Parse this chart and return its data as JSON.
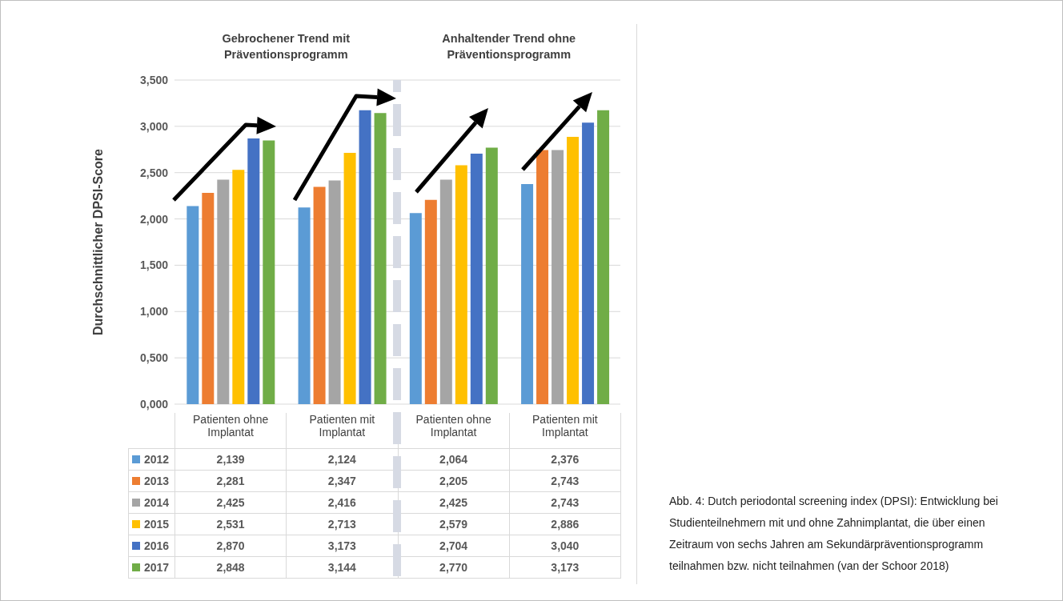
{
  "chart_data": {
    "type": "bar",
    "ylabel": "Durchschnittlicher DPSI-Score",
    "categories": [
      "Patienten ohne Implantat",
      "Patienten mit Implantat",
      "Patienten ohne Implantat",
      "Patienten mit Implantat"
    ],
    "series": [
      {
        "name": "2012",
        "color": "#5b9bd5",
        "values": [
          2.139,
          2.124,
          2.064,
          2.376
        ],
        "value_labels": [
          "2,139",
          "2,124",
          "2,064",
          "2,376"
        ]
      },
      {
        "name": "2013",
        "color": "#ed7d31",
        "values": [
          2.281,
          2.347,
          2.205,
          2.743
        ],
        "value_labels": [
          "2,281",
          "2,347",
          "2,205",
          "2,743"
        ]
      },
      {
        "name": "2014",
        "color": "#a5a5a5",
        "values": [
          2.425,
          2.416,
          2.425,
          2.743
        ],
        "value_labels": [
          "2,425",
          "2,416",
          "2,425",
          "2,743"
        ]
      },
      {
        "name": "2015",
        "color": "#ffc000",
        "values": [
          2.531,
          2.713,
          2.579,
          2.886
        ],
        "value_labels": [
          "2,531",
          "2,713",
          "2,579",
          "2,886"
        ]
      },
      {
        "name": "2016",
        "color": "#4472c4",
        "values": [
          2.87,
          3.173,
          2.704,
          3.04
        ],
        "value_labels": [
          "2,870",
          "3,173",
          "2,704",
          "3,040"
        ]
      },
      {
        "name": "2017",
        "color": "#70ad47",
        "values": [
          2.848,
          3.144,
          2.77,
          3.173
        ],
        "value_labels": [
          "2,848",
          "3,144",
          "2,770",
          "3,173"
        ]
      }
    ],
    "ylim": [
      0,
      3.5
    ],
    "yticks": [
      {
        "value": 0,
        "label": "0,000"
      },
      {
        "value": 0.5,
        "label": "0,500"
      },
      {
        "value": 1,
        "label": "1,000"
      },
      {
        "value": 1.5,
        "label": "1,500"
      },
      {
        "value": 2,
        "label": "2,000"
      },
      {
        "value": 2.5,
        "label": "2,500"
      },
      {
        "value": 3,
        "label": "3,000"
      },
      {
        "value": 3.5,
        "label": "3,500"
      }
    ],
    "grid": "y",
    "legend": "bottom",
    "annotations": [
      "Gebrochener Trend mit Präventionsprogramm",
      "Anhaltender Trend ohne Präventionsprogramm",
      "Abb. 4: Dutch periodontal screening index (DPSI): Entwicklung bei Studienteilnehmern mit und ohne Zahnimplantat, die über einen Zeitraum von sechs Jahren am Sekundärpräventionsprogramm teilnahmen bzw. nicht teilnahmen (van der Schoor 2018)"
    ]
  }
}
